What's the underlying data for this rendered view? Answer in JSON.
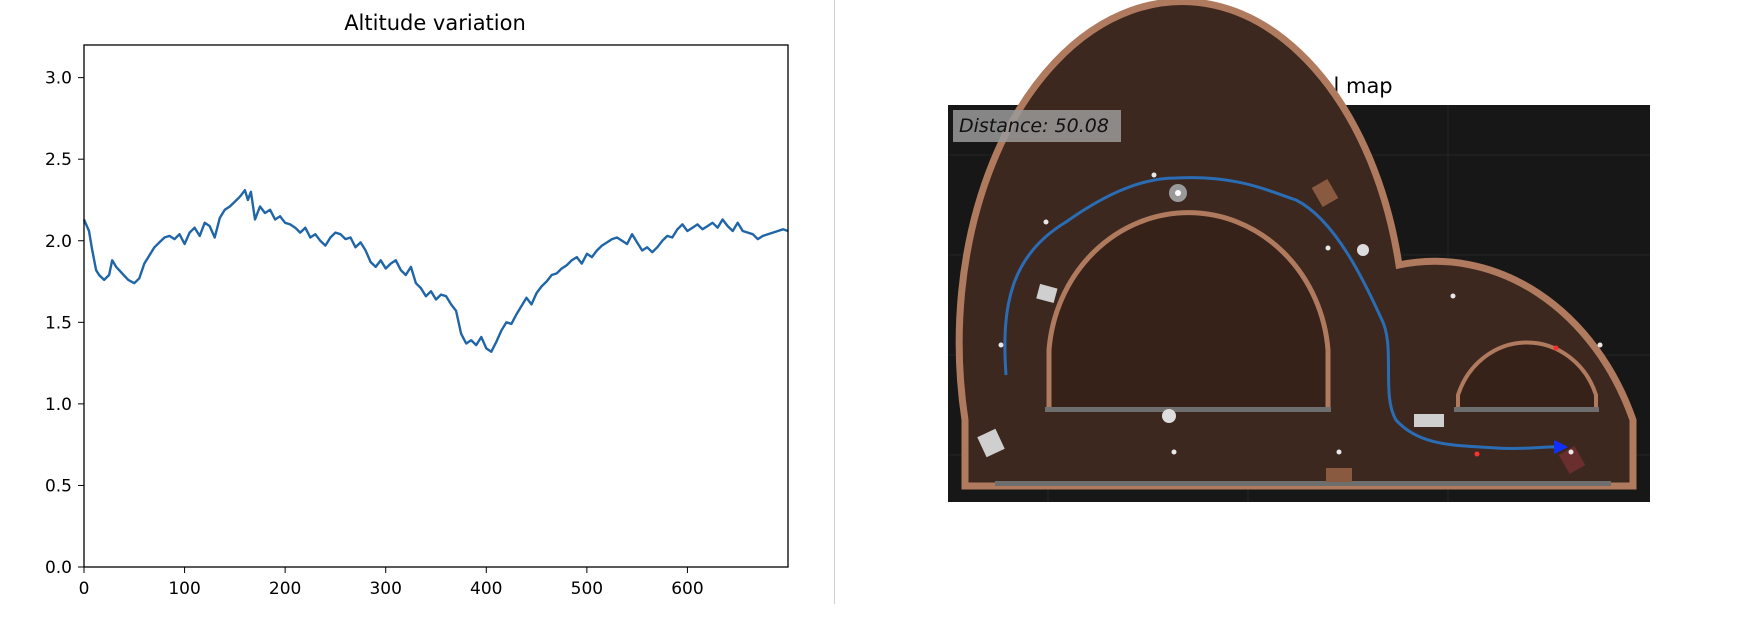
{
  "chart_data": {
    "type": "line",
    "title": "Altitude variation",
    "xlabel": "",
    "ylabel": "",
    "xlim": [
      0,
      700
    ],
    "ylim": [
      0,
      3.2
    ],
    "xticks": [
      0,
      100,
      200,
      300,
      400,
      500,
      600
    ],
    "yticks": [
      0.0,
      0.5,
      1.0,
      1.5,
      2.0,
      2.5,
      3.0
    ],
    "xtick_labels": [
      "0",
      "100",
      "200",
      "300",
      "400",
      "500",
      "600"
    ],
    "ytick_labels": [
      "0.0",
      "0.5",
      "1.0",
      "1.5",
      "2.0",
      "2.5",
      "3.0"
    ],
    "grid": false,
    "series": [
      {
        "color": "#1f65a8",
        "x": [
          0,
          5,
          8,
          12,
          15,
          20,
          25,
          28,
          32,
          38,
          44,
          50,
          55,
          60,
          65,
          70,
          75,
          80,
          85,
          90,
          95,
          100,
          105,
          110,
          115,
          120,
          125,
          130,
          135,
          140,
          145,
          150,
          155,
          160,
          163,
          166,
          170,
          175,
          180,
          185,
          190,
          195,
          200,
          205,
          210,
          215,
          220,
          225,
          230,
          235,
          240,
          245,
          250,
          255,
          260,
          265,
          270,
          275,
          280,
          285,
          290,
          295,
          300,
          305,
          310,
          315,
          320,
          325,
          330,
          335,
          340,
          345,
          350,
          355,
          360,
          365,
          370,
          375,
          380,
          385,
          390,
          395,
          400,
          405,
          410,
          415,
          420,
          425,
          430,
          435,
          440,
          445,
          450,
          455,
          460,
          465,
          470,
          475,
          480,
          485,
          490,
          495,
          500,
          505,
          510,
          515,
          520,
          525,
          530,
          535,
          540,
          545,
          550,
          555,
          560,
          565,
          570,
          575,
          580,
          585,
          590,
          595,
          600,
          605,
          610,
          615,
          620,
          625,
          630,
          635,
          640,
          645,
          650,
          655,
          660,
          665,
          670,
          675,
          680,
          685,
          690,
          695,
          700
        ],
        "y": [
          2.13,
          2.06,
          1.95,
          1.82,
          1.79,
          1.76,
          1.79,
          1.88,
          1.84,
          1.8,
          1.76,
          1.74,
          1.77,
          1.86,
          1.91,
          1.96,
          1.99,
          2.02,
          2.03,
          2.01,
          2.04,
          1.98,
          2.05,
          2.08,
          2.03,
          2.11,
          2.09,
          2.02,
          2.14,
          2.19,
          2.21,
          2.24,
          2.27,
          2.31,
          2.25,
          2.3,
          2.13,
          2.21,
          2.17,
          2.19,
          2.13,
          2.15,
          2.11,
          2.1,
          2.08,
          2.05,
          2.08,
          2.02,
          2.04,
          2.0,
          1.97,
          2.02,
          2.05,
          2.04,
          2.01,
          2.02,
          1.96,
          1.99,
          1.94,
          1.87,
          1.84,
          1.88,
          1.83,
          1.86,
          1.88,
          1.82,
          1.79,
          1.84,
          1.74,
          1.71,
          1.66,
          1.69,
          1.64,
          1.67,
          1.66,
          1.61,
          1.57,
          1.43,
          1.37,
          1.39,
          1.36,
          1.41,
          1.34,
          1.32,
          1.38,
          1.45,
          1.5,
          1.49,
          1.55,
          1.6,
          1.65,
          1.61,
          1.68,
          1.72,
          1.75,
          1.79,
          1.8,
          1.83,
          1.85,
          1.88,
          1.9,
          1.86,
          1.92,
          1.9,
          1.94,
          1.97,
          1.99,
          2.01,
          2.02,
          2.0,
          1.98,
          2.04,
          1.99,
          1.94,
          1.96,
          1.93,
          1.96,
          2.0,
          2.03,
          2.02,
          2.07,
          2.1,
          2.06,
          2.08,
          2.1,
          2.07,
          2.09,
          2.11,
          2.08,
          2.13,
          2.09,
          2.06,
          2.11,
          2.06,
          2.05,
          2.04,
          2.01,
          2.03,
          2.04,
          2.05,
          2.06,
          2.07,
          2.06
        ]
      }
    ]
  },
  "map": {
    "title": "Navigational map",
    "distance_text": "Distance: 50.08"
  },
  "colors": {
    "line": "#1f65a8",
    "map_background": "#171717",
    "floor": "#3d2820",
    "wall": "#b07a5e",
    "path": "#2a6db5",
    "robot": "#1030ff"
  }
}
